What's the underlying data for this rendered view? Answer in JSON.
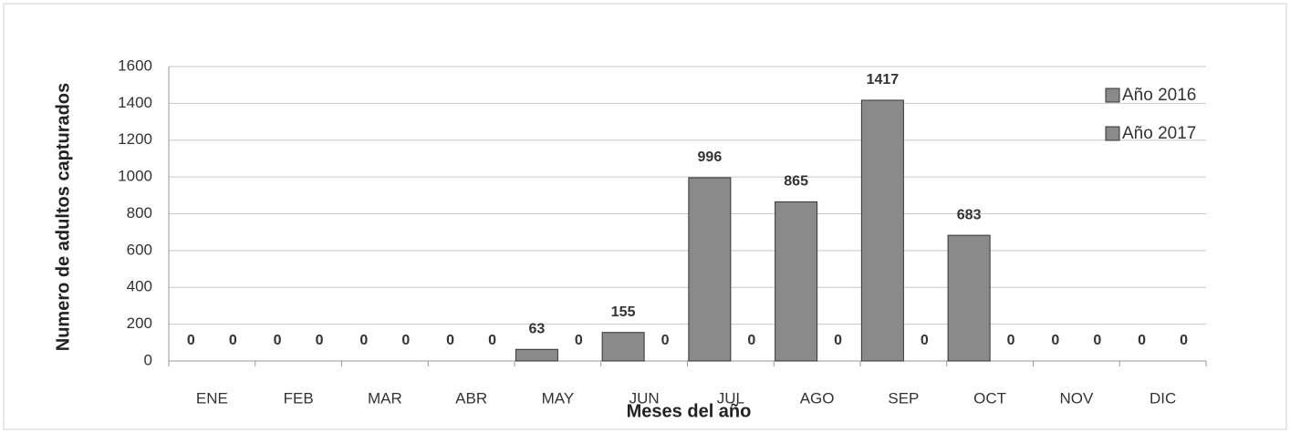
{
  "chart_data": {
    "type": "bar",
    "categories": [
      "ENE",
      "FEB",
      "MAR",
      "ABR",
      "MAY",
      "JUN",
      "JUL",
      "AGO",
      "SEP",
      "OCT",
      "NOV",
      "DIC"
    ],
    "series": [
      {
        "name": "Año 2016",
        "color": "#8a8a8a",
        "values": [
          0,
          0,
          0,
          0,
          63,
          155,
          996,
          865,
          1417,
          683,
          0,
          0
        ]
      },
      {
        "name": "Año 2017",
        "color": "#8a8a8a",
        "values": [
          0,
          0,
          0,
          0,
          0,
          0,
          0,
          0,
          0,
          0,
          0,
          0
        ]
      }
    ],
    "x_label": "Meses del año",
    "y_label": "Numero de adultos capturados",
    "ylim": [
      0,
      1600
    ],
    "yticks": [
      0,
      200,
      400,
      600,
      800,
      1000,
      1200,
      1400,
      1600
    ],
    "grid": true,
    "legend": "right"
  }
}
